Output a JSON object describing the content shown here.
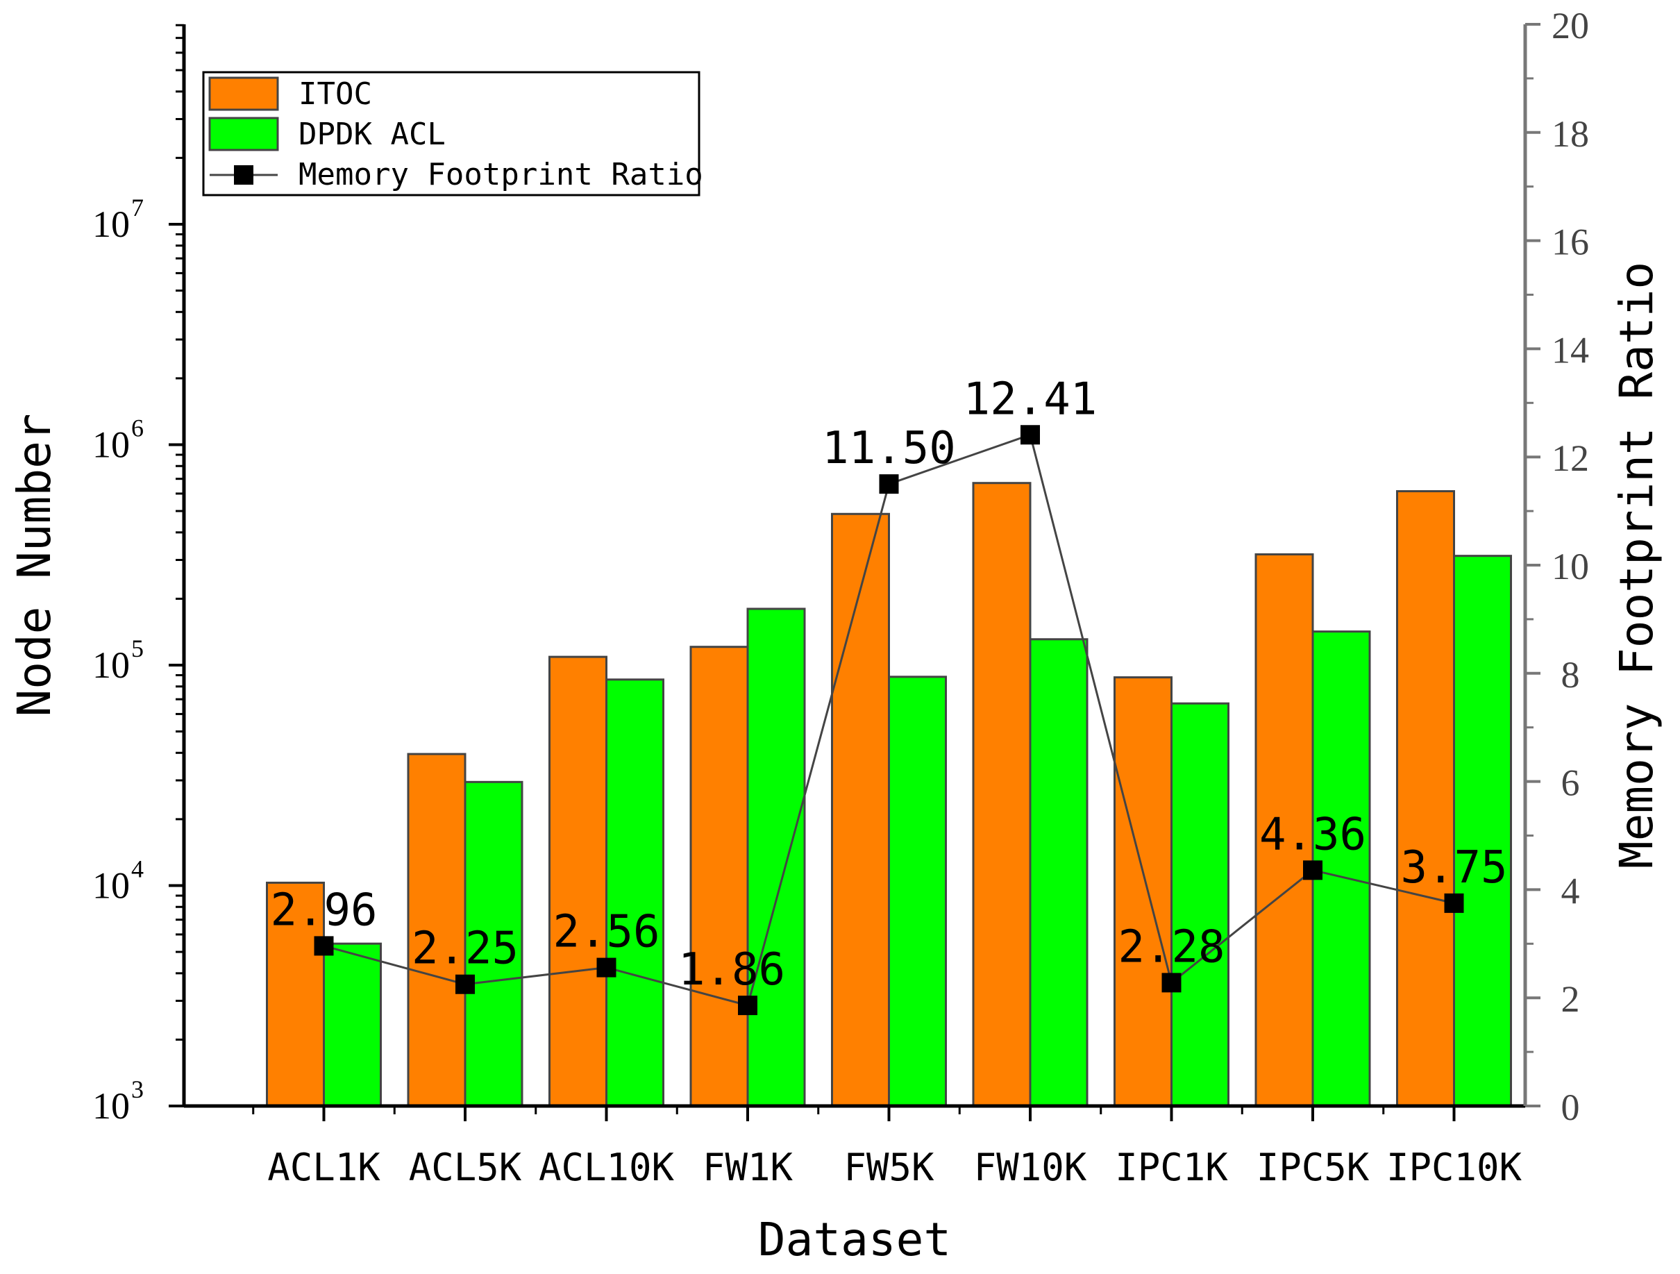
{
  "chart_data": {
    "type": "bar",
    "categories": [
      "ACL1K",
      "ACL5K",
      "ACL10K",
      "FW1K",
      "FW5K",
      "FW10K",
      "IPC1K",
      "IPC5K",
      "IPC10K"
    ],
    "series": [
      {
        "name": "ITOC",
        "color": "#FF8000",
        "axis": "left",
        "values": [
          10300,
          39500,
          109000,
          121000,
          485000,
          670000,
          88000,
          318000,
          615000
        ]
      },
      {
        "name": "DPDK ACL",
        "color": "#00FF00",
        "axis": "left",
        "values": [
          5450,
          29500,
          86000,
          180000,
          88500,
          131000,
          67000,
          142000,
          313000
        ]
      },
      {
        "name": "Memory Footprint Ratio",
        "type": "line",
        "color": "#000000",
        "line_color": "#444444",
        "axis": "right",
        "values": [
          2.96,
          2.25,
          2.56,
          1.86,
          11.5,
          12.41,
          2.28,
          4.36,
          3.75
        ],
        "labels": [
          "2.96",
          "2.25",
          "2.56",
          "1.86",
          "11.50",
          "12.41",
          "2.28",
          "4.36",
          "3.75"
        ]
      }
    ],
    "xlabel": "Dataset",
    "ylabel": "Node Number",
    "y2label": "Memory Footprint Ratio",
    "yscale": "log",
    "ylim": [
      1000,
      80000000
    ],
    "y_ticks": [
      {
        "value": 1000,
        "base": "10",
        "exp": "3"
      },
      {
        "value": 10000,
        "base": "10",
        "exp": "4"
      },
      {
        "value": 100000,
        "base": "10",
        "exp": "5"
      },
      {
        "value": 1000000,
        "base": "10",
        "exp": "6"
      },
      {
        "value": 10000000,
        "base": "10",
        "exp": "7"
      }
    ],
    "y2lim": [
      0,
      20
    ],
    "y2_ticks": [
      "0",
      "2",
      "4",
      "6",
      "8",
      "10",
      "12",
      "14",
      "16",
      "18",
      "20"
    ],
    "grid": false,
    "legend_position": "top-left"
  }
}
